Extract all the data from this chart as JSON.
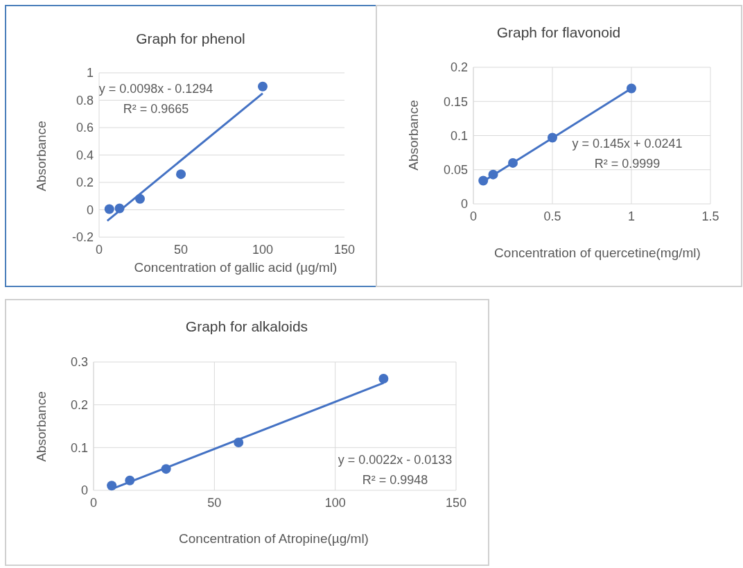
{
  "chart_data": [
    {
      "type": "scatter",
      "title": "Graph for phenol",
      "xlabel": "Concentration of gallic acid (µg/ml)",
      "ylabel": "Absorbance",
      "xlim": [
        0,
        150
      ],
      "xticks": [
        0,
        50,
        100,
        150
      ],
      "ylim": [
        -0.2,
        1
      ],
      "yticks": [
        -0.2,
        0,
        0.2,
        0.4,
        0.6,
        0.8,
        1
      ],
      "grid": "y",
      "line_style": "solid",
      "annotations": [
        "y = 0.0098x - 0.1294",
        "R² = 0.9665"
      ],
      "series": [
        {
          "color": "#4472c4",
          "marker": "circle",
          "x": [
            6.25,
            12.5,
            25,
            50,
            100
          ],
          "values": [
            0.005,
            0.01,
            0.08,
            0.26,
            0.9
          ]
        },
        {
          "type": "line",
          "marker": "none",
          "color": "#4472c4",
          "x": [
            5,
            100
          ],
          "values": [
            -0.08,
            0.85
          ]
        }
      ]
    },
    {
      "type": "scatter",
      "title": "Graph for flavonoid",
      "xlabel": "Concentration of quercetine(mg/ml)",
      "ylabel": "Absorbance",
      "xlim": [
        0,
        1.5
      ],
      "xticks": [
        0,
        0.5,
        1,
        1.5
      ],
      "ylim": [
        0,
        0.2
      ],
      "yticks": [
        0,
        0.05,
        0.1,
        0.15,
        0.2
      ],
      "grid": true,
      "line_style": "solid",
      "annotations": [
        "y = 0.145x + 0.0241",
        "R² = 0.9999"
      ],
      "series": [
        {
          "color": "#4472c4",
          "marker": "circle",
          "x": [
            0.0625,
            0.125,
            0.25,
            0.5,
            1
          ],
          "values": [
            0.034,
            0.043,
            0.06,
            0.097,
            0.169
          ]
        },
        {
          "type": "line",
          "marker": "none",
          "color": "#4472c4",
          "x": [
            0.0625,
            1
          ],
          "values": [
            0.033,
            0.169
          ]
        }
      ]
    },
    {
      "type": "scatter",
      "title": "Graph for alkaloids",
      "xlabel": "Concentration of Atropine(µg/ml)",
      "ylabel": "Absorbance",
      "xlim": [
        0,
        150
      ],
      "xticks": [
        0,
        50,
        100,
        150
      ],
      "ylim": [
        0,
        0.3
      ],
      "yticks": [
        0,
        0.1,
        0.2,
        0.3
      ],
      "grid": true,
      "line_style": "solid",
      "annotations": [
        "y = 0.0022x - 0.0133",
        "R² = 0.9948"
      ],
      "series": [
        {
          "color": "#4472c4",
          "marker": "circle",
          "x": [
            7.5,
            15,
            30,
            60,
            120
          ],
          "values": [
            0.011,
            0.023,
            0.05,
            0.112,
            0.261
          ]
        },
        {
          "type": "line",
          "marker": "none",
          "color": "#4472c4",
          "x": [
            7.5,
            120
          ],
          "values": [
            0.003,
            0.251
          ]
        }
      ]
    }
  ]
}
